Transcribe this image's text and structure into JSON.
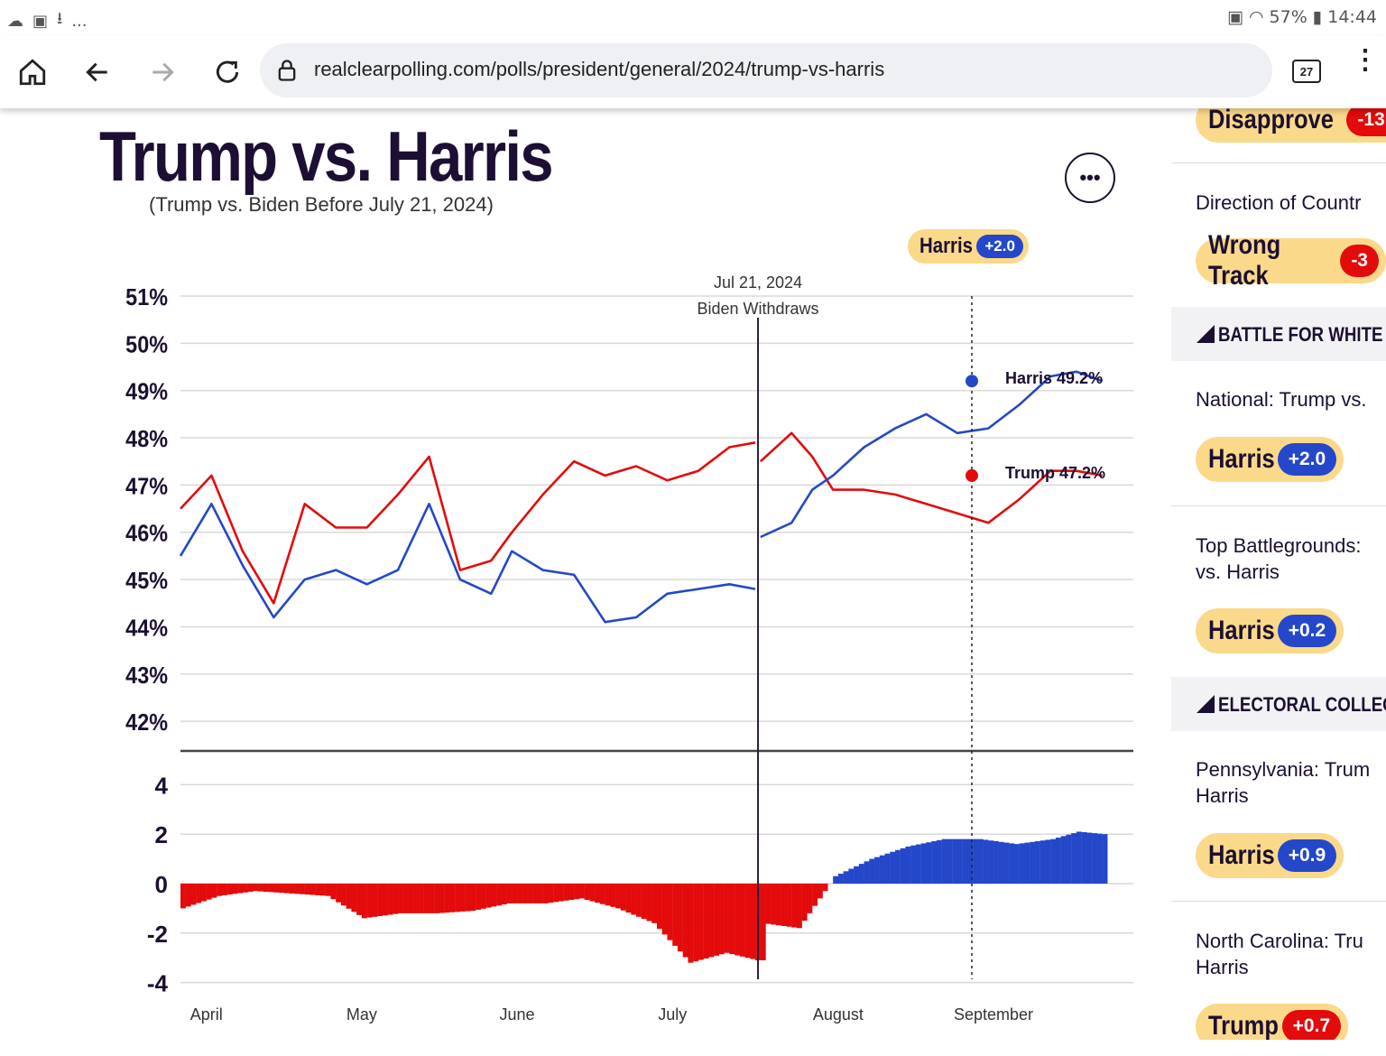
{
  "status_bar": {
    "left_more": "...",
    "battery": "57%",
    "time": "14:44"
  },
  "browser": {
    "url": "realclearpolling.com/polls/president/general/2024/trump-vs-harris",
    "tab_count": "27"
  },
  "page": {
    "title": "Trump vs. Harris",
    "subtitle": "(Trump vs. Biden Before July 21, 2024)",
    "more_button": "•••",
    "header_pill": {
      "name": "Harris",
      "value": "+2.0"
    }
  },
  "sidebar": {
    "top_pill": {
      "name": "Disapprove",
      "value": "-13."
    },
    "direction_label": "Direction of Countr",
    "direction_pill": {
      "name": "Wrong Track",
      "value": "-3"
    },
    "section1": "BATTLE FOR WHITE",
    "national_label": "National: Trump vs.",
    "national_pill": {
      "name": "Harris",
      "value": "+2.0"
    },
    "battleground_label": [
      "Top Battlegrounds:",
      "vs. Harris"
    ],
    "battleground_pill": {
      "name": "Harris",
      "value": "+0.2"
    },
    "section2": "ELECTORAL COLLEG",
    "pa_label": [
      "Pennsylvania: Trum",
      "Harris"
    ],
    "pa_pill": {
      "name": "Harris",
      "value": "+0.9"
    },
    "nc_label": [
      "North Carolina: Tru",
      "Harris"
    ],
    "nc_pill": {
      "name": "Trump",
      "value": "+0.7"
    }
  },
  "colors": {
    "trump": "#e30b0b",
    "harris": "#2448c9",
    "accent": "#fbd98a",
    "ink": "#1c0f33"
  },
  "chart_data": {
    "type": "line",
    "x_months": [
      "April",
      "May",
      "June",
      "July",
      "August",
      "September"
    ],
    "ylim": [
      41.5,
      51
    ],
    "y_ticks": [
      "51%",
      "50%",
      "49%",
      "48%",
      "47%",
      "46%",
      "45%",
      "44%",
      "43%",
      "42%"
    ],
    "annotation": {
      "date": "Jul 21, 2024",
      "text": "Biden Withdraws"
    },
    "end_labels": [
      {
        "name": "Harris",
        "value": "49.2%"
      },
      {
        "name": "Trump",
        "value": "47.2%"
      }
    ],
    "series": [
      {
        "name": "Trump",
        "color": "#e30b0b",
        "dates": [
          "2024-04-01",
          "2024-04-07",
          "2024-04-13",
          "2024-04-19",
          "2024-04-25",
          "2024-05-01",
          "2024-05-07",
          "2024-05-13",
          "2024-05-19",
          "2024-05-25",
          "2024-05-31",
          "2024-06-04",
          "2024-06-10",
          "2024-06-16",
          "2024-06-22",
          "2024-06-28",
          "2024-07-04",
          "2024-07-10",
          "2024-07-16",
          "2024-07-21",
          "2024-07-22",
          "2024-07-28",
          "2024-08-01",
          "2024-08-05",
          "2024-08-11",
          "2024-08-17",
          "2024-08-23",
          "2024-08-29",
          "2024-09-04",
          "2024-09-10",
          "2024-09-16",
          "2024-09-21",
          "2024-09-26"
        ],
        "values": [
          46.5,
          47.2,
          45.6,
          44.5,
          46.6,
          46.1,
          46.1,
          46.8,
          47.6,
          45.2,
          45.4,
          46.0,
          46.8,
          47.5,
          47.2,
          47.4,
          47.1,
          47.3,
          47.8,
          47.9,
          47.5,
          48.1,
          47.6,
          46.9,
          46.9,
          46.8,
          46.6,
          46.4,
          46.2,
          46.7,
          47.3,
          47.3,
          47.2
        ]
      },
      {
        "name": "Harris",
        "color": "#2448c9",
        "dates": [
          "2024-04-01",
          "2024-04-07",
          "2024-04-13",
          "2024-04-19",
          "2024-04-25",
          "2024-05-01",
          "2024-05-07",
          "2024-05-13",
          "2024-05-19",
          "2024-05-25",
          "2024-05-31",
          "2024-06-04",
          "2024-06-10",
          "2024-06-16",
          "2024-06-22",
          "2024-06-28",
          "2024-07-04",
          "2024-07-10",
          "2024-07-16",
          "2024-07-21",
          "2024-07-22",
          "2024-07-28",
          "2024-08-01",
          "2024-08-05",
          "2024-08-11",
          "2024-08-17",
          "2024-08-23",
          "2024-08-29",
          "2024-09-04",
          "2024-09-10",
          "2024-09-16",
          "2024-09-21",
          "2024-09-26"
        ],
        "values": [
          45.5,
          46.6,
          45.3,
          44.2,
          45.0,
          45.2,
          44.9,
          45.2,
          46.6,
          45.0,
          44.7,
          45.6,
          45.2,
          45.1,
          44.1,
          44.2,
          44.7,
          44.8,
          44.9,
          44.8,
          45.9,
          46.2,
          46.9,
          47.2,
          47.8,
          48.2,
          48.5,
          48.1,
          48.2,
          48.7,
          49.3,
          49.4,
          49.2
        ]
      }
    ],
    "spread": {
      "ylim": [
        -4,
        4
      ],
      "y_ticks": [
        "4",
        "2",
        "0",
        "-2",
        "-4"
      ],
      "dates": [
        "2024-04-01",
        "2024-04-08",
        "2024-04-15",
        "2024-04-22",
        "2024-04-29",
        "2024-05-06",
        "2024-05-13",
        "2024-05-20",
        "2024-05-27",
        "2024-06-03",
        "2024-06-10",
        "2024-06-17",
        "2024-06-24",
        "2024-07-01",
        "2024-07-08",
        "2024-07-15",
        "2024-07-21",
        "2024-07-22",
        "2024-07-29",
        "2024-08-05",
        "2024-08-12",
        "2024-08-19",
        "2024-08-26",
        "2024-09-02",
        "2024-09-09",
        "2024-09-16",
        "2024-09-21",
        "2024-09-26"
      ],
      "values": [
        -1.0,
        -0.5,
        -0.3,
        -0.4,
        -0.5,
        -1.4,
        -1.2,
        -1.2,
        -1.1,
        -0.8,
        -0.8,
        -0.6,
        -1.0,
        -1.6,
        -3.2,
        -2.8,
        -3.1,
        -1.6,
        -1.8,
        0.3,
        1.0,
        1.5,
        1.8,
        1.8,
        1.6,
        1.8,
        2.1,
        2.0
      ]
    }
  }
}
